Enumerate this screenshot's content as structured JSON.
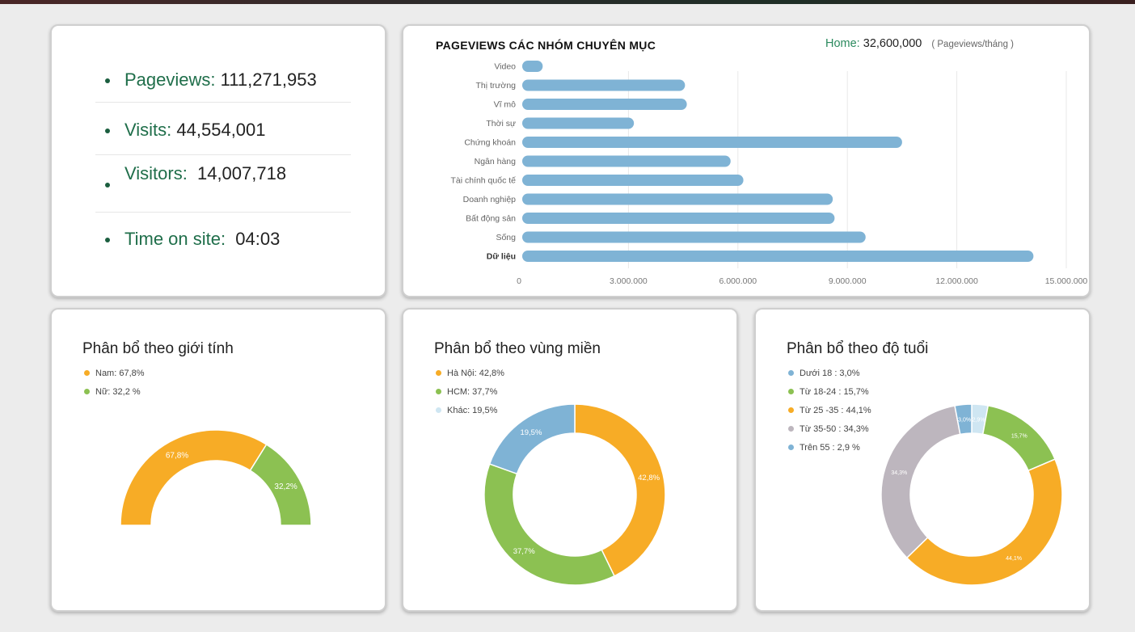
{
  "stats": [
    {
      "label": "Pageviews:",
      "value": "111,271,953"
    },
    {
      "label": "Visits:",
      "value": "44,554,001"
    },
    {
      "label": "Visitors:",
      "value": "14,007,718"
    },
    {
      "label": "Time on site:",
      "value": "04:03"
    }
  ],
  "colors": {
    "bar": "#7fb3d5",
    "orange": "#f7ac26",
    "green": "#8cc152",
    "blue": "#7fb3d5",
    "grey": "#bdb6be",
    "lightblue": "#cfe6f2",
    "accent": "#1f6e4a"
  },
  "chart_data": [
    {
      "type": "bar",
      "orientation": "horizontal",
      "title": "PAGEVIEWS CÁC NHÓM CHUYÊN MỤC",
      "subtitle_label": "Home:",
      "subtitle_value": "32,600,000",
      "unit": "( Pageviews/tháng )",
      "categories": [
        "Video",
        "Thị trường",
        "Vĩ mô",
        "Thời sự",
        "Chứng khoán",
        "Ngân hàng",
        "Tài chính quốc tế",
        "Doanh nghiệp",
        "Bất động sản",
        "Sống",
        "Dữ liệu"
      ],
      "values": [
        650000,
        4550000,
        4600000,
        3150000,
        10500000,
        5800000,
        6150000,
        8600000,
        8650000,
        9500000,
        14100000
      ],
      "xlim": [
        0,
        15000000
      ],
      "xticks": [
        0,
        3000000,
        6000000,
        9000000,
        12000000,
        15000000
      ],
      "xtick_labels": [
        "0",
        "3.000.000",
        "6.000.000",
        "9.000.000",
        "12.000.000",
        "15.000.000"
      ],
      "grid": true
    },
    {
      "type": "pie",
      "variant": "semi-donut",
      "title": "Phân bổ theo giới tính",
      "legend": [
        "Nam: 67,8%",
        "Nữ: 32,2 %"
      ],
      "slices": [
        {
          "value": 67.8,
          "label": "67,8%",
          "color": "#f7ac26"
        },
        {
          "value": 32.2,
          "label": "32,2%",
          "color": "#8cc152"
        }
      ]
    },
    {
      "type": "pie",
      "variant": "donut",
      "title": "Phân bổ theo vùng miền",
      "legend": [
        "Hà Nội: 42,8%",
        "HCM: 37,7%",
        "Khác: 19,5%"
      ],
      "slices": [
        {
          "value": 42.8,
          "label": "42,8%",
          "color": "#f7ac26"
        },
        {
          "value": 37.7,
          "label": "37,7%",
          "color": "#8cc152"
        },
        {
          "value": 19.5,
          "label": "19,5%",
          "color": "#7fb3d5"
        }
      ]
    },
    {
      "type": "pie",
      "variant": "donut",
      "title": "Phân bổ theo độ tuổi",
      "legend": [
        "Dưới 18 : 3,0%",
        "Từ 18-24 : 15,7%",
        "Từ 25 -35 : 44,1%",
        "Từ 35-50 : 34,3%",
        "Trên 55 : 2,9 %"
      ],
      "slices": [
        {
          "value": 2.9,
          "label": "2,9%",
          "color": "#cfe6f2"
        },
        {
          "value": 15.7,
          "label": "15,7%",
          "color": "#8cc152"
        },
        {
          "value": 44.1,
          "label": "44,1%",
          "color": "#f7ac26"
        },
        {
          "value": 34.3,
          "label": "34,3%",
          "color": "#bdb6be"
        },
        {
          "value": 3.0,
          "label": "3,0%",
          "color": "#7fb3d5"
        }
      ]
    }
  ]
}
